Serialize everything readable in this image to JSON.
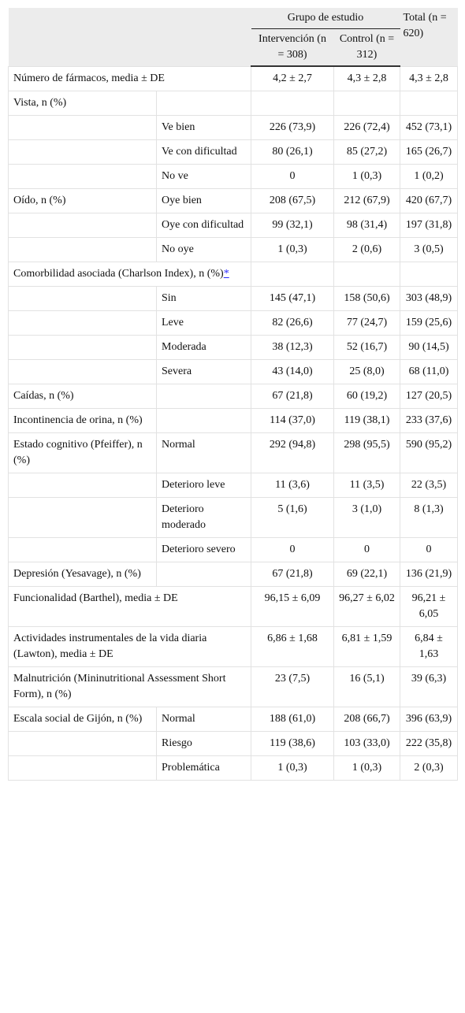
{
  "header": {
    "group": "Grupo de estudio",
    "columns": [
      "Intervención (n = 308)",
      "Control (n = 312)",
      "Total (n = 620)"
    ]
  },
  "table": {
    "rows": [
      {
        "cells": [
          "Número de fármacos, media ± DE",
          "4,2 ± 2,7",
          "4,3 ± 2,8",
          "4,3 ± 2,8"
        ]
      },
      {
        "cells": [
          "Vista, n (%)",
          null,
          null,
          null,
          null
        ]
      },
      {
        "cells": [
          null,
          "Ve bien",
          "226 (73,9)",
          "226 (72,4)",
          "452 (73,1)"
        ]
      },
      {
        "cells": [
          null,
          "Ve con dificultad",
          "80 (26,1)",
          "85 (27,2)",
          "165 (26,7)"
        ]
      },
      {
        "cells": [
          null,
          "No ve",
          "0",
          "1 (0,3)",
          "1 (0,2)"
        ]
      },
      {
        "cells": [
          "Oído, n (%)",
          "Oye bien",
          "208 (67,5)",
          "212 (67,9)",
          "420 (67,7)"
        ]
      },
      {
        "cells": [
          null,
          "Oye con dificultad",
          "99 (32,1)",
          "98 (31,4)",
          "197 (31,8)"
        ]
      },
      {
        "cells": [
          null,
          "No oye",
          "1 (0,3)",
          "2 (0,6)",
          "3 (0,5)"
        ]
      },
      {
        "cells": [
          "Comorbilidad asociada (Charlson Index), n (%)",
          null,
          null,
          null
        ],
        "note": "*"
      },
      {
        "cells": [
          null,
          "Sin",
          "145 (47,1)",
          "158 (50,6)",
          "303 (48,9)"
        ]
      },
      {
        "cells": [
          null,
          "Leve",
          "82 (26,6)",
          "77 (24,7)",
          "159 (25,6)"
        ]
      },
      {
        "cells": [
          null,
          "Moderada",
          "38 (12,3)",
          "52 (16,7)",
          "90 (14,5)"
        ]
      },
      {
        "cells": [
          null,
          "Severa",
          "43 (14,0)",
          "25 (8,0)",
          "68 (11,0)"
        ]
      },
      {
        "cells": [
          "Caídas, n (%)",
          null,
          "67 (21,8)",
          "60 (19,2)",
          "127 (20,5)"
        ]
      },
      {
        "cells": [
          "Incontinencia de orina, n (%)",
          null,
          "114 (37,0)",
          "119 (38,1)",
          "233 (37,6)"
        ]
      },
      {
        "cells": [
          "Estado cognitivo (Pfeiffer), n (%)",
          "Normal",
          "292 (94,8)",
          "298 (95,5)",
          "590 (95,2)"
        ]
      },
      {
        "cells": [
          null,
          "Deterioro leve",
          "11 (3,6)",
          "11 (3,5)",
          "22 (3,5)"
        ]
      },
      {
        "cells": [
          null,
          "Deterioro moderado",
          "5 (1,6)",
          "3 (1,0)",
          "8 (1,3)"
        ]
      },
      {
        "cells": [
          null,
          "Deterioro severo",
          "0",
          "0",
          "0"
        ]
      },
      {
        "cells": [
          "Depresión (Yesavage), n (%)",
          null,
          "67 (21,8)",
          "69 (22,1)",
          "136 (21,9)"
        ]
      },
      {
        "cells": [
          "Funcionalidad (Barthel), media ± DE",
          "96,15 ± 6,09",
          "96,27 ± 6,02",
          "96,21 ± 6,05"
        ]
      },
      {
        "cells": [
          "Actividades instrumentales de la vida diaria (Lawton), media ± DE",
          "6,86 ± 1,68",
          "6,81 ± 1,59",
          "6,84 ± 1,63"
        ]
      },
      {
        "cells": [
          "Malnutrición (Mininutritional Assessment Short Form), n (%)",
          "23 (7,5)",
          "16 (5,1)",
          "39 (6,3)"
        ]
      },
      {
        "cells": [
          "Escala social de Gijón, n (%)",
          "Normal",
          "188 (61,0)",
          "208 (66,7)",
          "396 (63,9)"
        ]
      },
      {
        "cells": [
          null,
          "Riesgo",
          "119 (38,6)",
          "103 (33,0)",
          "222 (35,8)"
        ]
      },
      {
        "cells": [
          null,
          "Problemática",
          "1 (0,3)",
          "1 (0,3)",
          "2 (0,3)"
        ]
      }
    ]
  }
}
